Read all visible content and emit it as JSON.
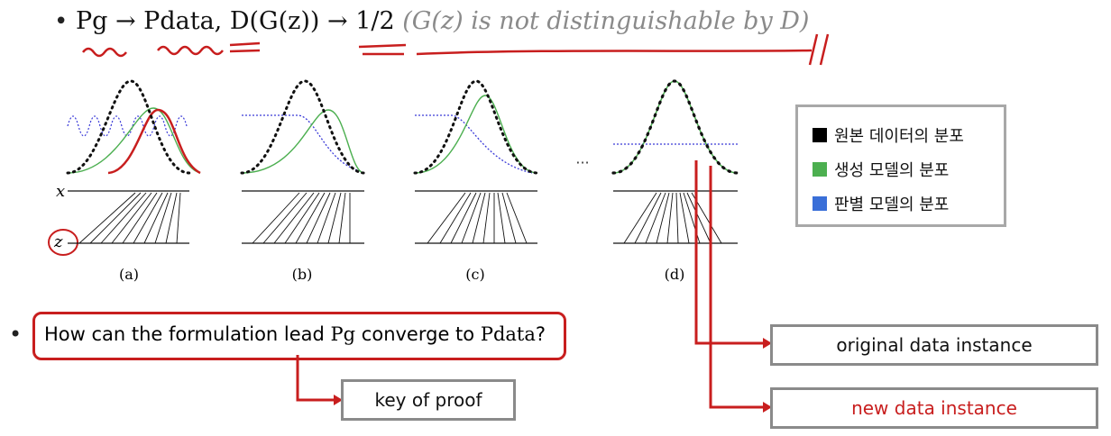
{
  "headline": {
    "bullet": "•",
    "text_main": "Pg → Pdata, D(G(z)) → 1/2",
    "text_note": "(G(z) is not distinguishable by D)"
  },
  "figure": {
    "axis_x_label": "x",
    "axis_z_label": "z",
    "ellipsis": "···",
    "panels": [
      {
        "label": "(a)"
      },
      {
        "label": "(b)"
      },
      {
        "label": "(c)"
      },
      {
        "label": "(d)"
      }
    ]
  },
  "legend": {
    "items": [
      {
        "label": "원본 데이터의 분포",
        "color": "#000000"
      },
      {
        "label": "생성 모델의 분포",
        "color": "#4caf50"
      },
      {
        "label": "판별 모델의 분포",
        "color": "#3a6fd8"
      }
    ]
  },
  "question": {
    "bullet": "•",
    "prefix": "How can the formulation lead ",
    "pg": "Pg",
    "middle": " converge to ",
    "pdata": "Pdata",
    "suffix": "?"
  },
  "callouts": {
    "key_of_proof": "key of proof",
    "original": "original data instance",
    "new": "new data instance"
  },
  "colors": {
    "annotation_red": "#c81e1e",
    "generator_green": "#4caf50",
    "discriminator_blue": "#3a3ad8"
  }
}
